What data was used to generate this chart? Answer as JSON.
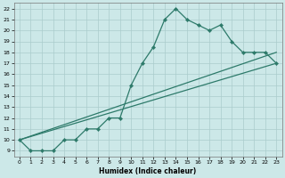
{
  "xlabel": "Humidex (Indice chaleur)",
  "bg_color": "#cce8e8",
  "grid_color": "#aacccc",
  "line_color": "#2d7a6a",
  "xlim": [
    -0.5,
    23.5
  ],
  "ylim": [
    8.5,
    22.5
  ],
  "xticks": [
    0,
    1,
    2,
    3,
    4,
    5,
    6,
    7,
    8,
    9,
    10,
    11,
    12,
    13,
    14,
    15,
    16,
    17,
    18,
    19,
    20,
    21,
    22,
    23
  ],
  "yticks": [
    9,
    10,
    11,
    12,
    13,
    14,
    15,
    16,
    17,
    18,
    19,
    20,
    21,
    22
  ],
  "line1_x": [
    0,
    1,
    2,
    3,
    4,
    5,
    6,
    7,
    8,
    9,
    10,
    11,
    12,
    13,
    14,
    15,
    16,
    17,
    18,
    19,
    20,
    21,
    22,
    23
  ],
  "line1_y": [
    10,
    9,
    9,
    9,
    10,
    10,
    11,
    11,
    12,
    12,
    15,
    17,
    18.5,
    21,
    22,
    21,
    20.5,
    20,
    20.5,
    19,
    18,
    18,
    18,
    17
  ],
  "line2_x": [
    0,
    23
  ],
  "line2_y": [
    10,
    17
  ],
  "line3_x": [
    0,
    23
  ],
  "line3_y": [
    10,
    18
  ]
}
